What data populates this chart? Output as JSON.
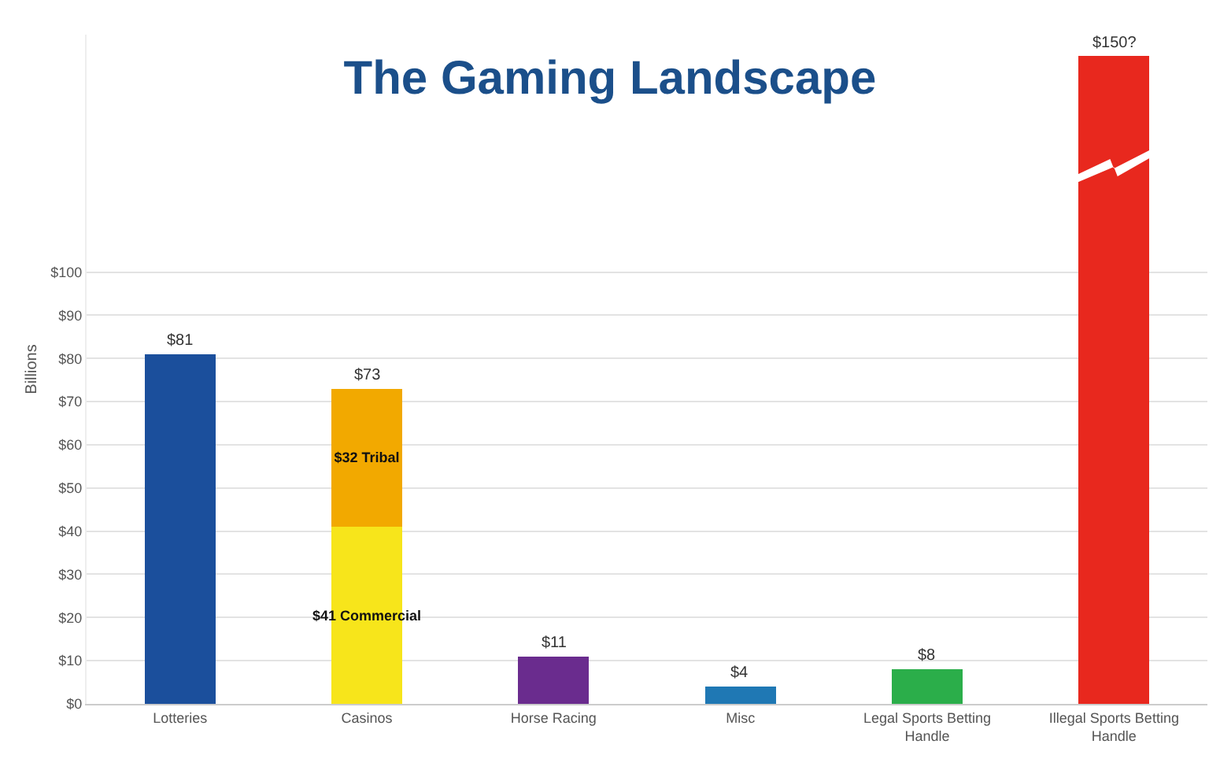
{
  "chart_data": {
    "type": "bar",
    "title": "The Gaming Landscape",
    "ylabel": "Billions",
    "categories": [
      "Lotteries",
      "Casinos",
      "Horse Racing",
      "Misc",
      "Legal Sports Betting Handle",
      "Illegal Sports Betting Handle"
    ],
    "stacked": true,
    "series": [
      {
        "colors": [
          "#1b4f9c",
          "#f7e51b",
          "#6a2c8e",
          "#1f78b4",
          "#2bae4a",
          "#e8281e"
        ],
        "values": [
          81,
          41,
          11,
          4,
          8,
          150
        ],
        "value_labels": [
          null,
          "$41 Commercial",
          null,
          null,
          null,
          null
        ]
      },
      {
        "color": "#f2a900",
        "values": [
          null,
          32,
          null,
          null,
          null,
          null
        ],
        "value_labels": [
          null,
          "$32 Tribal",
          null,
          null,
          null,
          null
        ]
      }
    ],
    "totals": [
      "$81",
      "$73",
      "$11",
      "$4",
      "$8",
      "$150?"
    ],
    "ylim": [
      0,
      155
    ],
    "yticks": [
      {
        "value": 0,
        "label": "$0"
      },
      {
        "value": 10,
        "label": "$10"
      },
      {
        "value": 20,
        "label": "$20"
      },
      {
        "value": 30,
        "label": "$30"
      },
      {
        "value": 40,
        "label": "$40"
      },
      {
        "value": 50,
        "label": "$50"
      },
      {
        "value": 60,
        "label": "$60"
      },
      {
        "value": 70,
        "label": "$70"
      },
      {
        "value": 80,
        "label": "$80"
      },
      {
        "value": 90,
        "label": "$90"
      },
      {
        "value": 100,
        "label": "$100"
      }
    ],
    "grid": "y"
  }
}
